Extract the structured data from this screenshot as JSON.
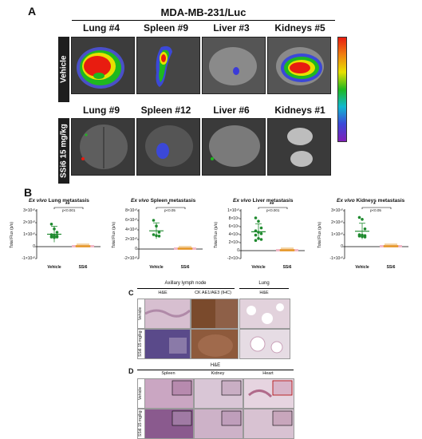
{
  "panel_a": {
    "letter": "A",
    "title": "MDA-MB-231/Luc",
    "row_labels": [
      "Vehicle",
      "SSi6 15 mg/kg"
    ],
    "top_labels": [
      "Lung #4",
      "Spleen #9",
      "Liver #3",
      "Kidneys #5"
    ],
    "bottom_labels": [
      "Lung #9",
      "Spleen #12",
      "Liver #6",
      "Kidneys #1"
    ]
  },
  "panel_b": {
    "letter": "B",
    "charts": [
      {
        "title_italic": "Ex vivo",
        "title_rest": " Lung metastasis",
        "sig": "**",
        "p": "p<0.001",
        "yticks": [
          "3×10¹⁰",
          "2×10¹⁰",
          "1×10¹⁰",
          "0",
          "-1×10¹⁰"
        ],
        "ylabel": "Total Flux (p/s)",
        "xcats": [
          "Vehicle",
          "SSi6"
        ]
      },
      {
        "title_italic": "Ex vivo",
        "title_rest": " Spleen metastasis",
        "sig": "*",
        "p": "p<0.05",
        "yticks": [
          "8×10¹⁰",
          "6×10¹⁰",
          "4×10¹⁰",
          "2×10¹⁰",
          "0",
          "-2×10¹⁰"
        ],
        "ylabel": "Total Flux (p/s)",
        "xcats": [
          "Vehicle",
          "SSi6"
        ]
      },
      {
        "title_italic": "Ex vivo",
        "title_rest": " Liver metastasis",
        "sig": "**",
        "p": "p<0.001",
        "yticks": [
          "1×10¹⁰",
          "8×10⁹",
          "6×10⁹",
          "4×10⁹",
          "2×10⁹",
          "0",
          "-2×10⁹"
        ],
        "ylabel": "Total Flux (p/s)",
        "xcats": [
          "Vehicle",
          "SSi6"
        ]
      },
      {
        "title_italic": "Ex vivo",
        "title_rest": " Kidneys metastasis",
        "sig": "*",
        "p": "p<0.05",
        "yticks": [
          "3×10¹⁰",
          "2×10¹⁰",
          "1×10¹⁰",
          "0",
          "-1×10¹⁰"
        ],
        "ylabel": "Total Flux (p/s)",
        "xcats": [
          "Vehicle",
          "SSi6"
        ]
      }
    ]
  },
  "panel_c": {
    "letter": "C",
    "header_group": "Axillary lymph node",
    "header_lung": "Lung",
    "cols": [
      "H&E",
      "CK AE1/AE3 (IHC)",
      "H&E"
    ],
    "rows": [
      "Vehicle",
      "SSi6 15 mg/kg"
    ]
  },
  "panel_d": {
    "letter": "D",
    "header": "H&E",
    "cols": [
      "Spleen",
      "Kidney",
      "Heart"
    ],
    "rows": [
      "Vehicle",
      "SSi6 15 mg/kg"
    ]
  },
  "colors": {
    "vehicle_green": "#1e8a2e",
    "ssi6_orange": "#e59a24",
    "bar_pink": "#f2b8c8",
    "he_pink": "#c9a0b8",
    "ihc_brown": "#8a5a3c"
  }
}
